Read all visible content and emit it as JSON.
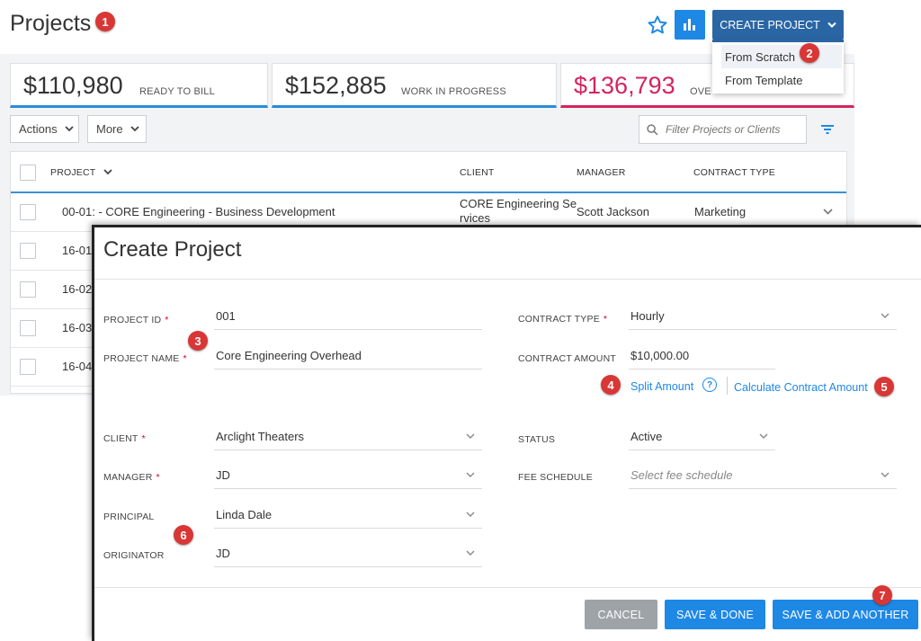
{
  "header": {
    "title": "Projects",
    "create_label": "CREATE PROJECT",
    "dropdown": [
      "From Scratch",
      "From Template"
    ]
  },
  "annotations": [
    "1",
    "2",
    "3",
    "4",
    "5",
    "6",
    "7"
  ],
  "stats": [
    {
      "amount": "$110,980",
      "label": "READY TO BILL"
    },
    {
      "amount": "$152,885",
      "label": "WORK IN PROGRESS"
    },
    {
      "amount": "$136,793",
      "label": "OVE"
    }
  ],
  "toolbar": {
    "actions_label": "Actions",
    "more_label": "More",
    "filter_placeholder": "Filter Projects or Clients"
  },
  "table": {
    "columns": [
      "PROJECT",
      "CLIENT",
      "MANAGER",
      "CONTRACT TYPE"
    ],
    "rows": [
      {
        "project": "00-01: - CORE Engineering - Business Development",
        "client_line1": "CORE Engineering Se",
        "client_line2": "rvices",
        "manager": "Scott Jackson",
        "contract_type": "Marketing"
      },
      {
        "project": "16-01"
      },
      {
        "project": "16-02"
      },
      {
        "project": "16-03"
      },
      {
        "project": "16-04"
      }
    ]
  },
  "modal": {
    "title": "Create Project",
    "project_id_label": "PROJECT ID",
    "project_id_value": "001",
    "project_name_label": "PROJECT NAME",
    "project_name_value": "Core Engineering Overhead",
    "contract_type_label": "CONTRACT TYPE",
    "contract_type_value": "Hourly",
    "contract_amount_label": "CONTRACT AMOUNT",
    "contract_amount_value": "$10,000.00",
    "split_amount_link": "Split Amount",
    "help_glyph": "?",
    "calculate_link": "Calculate Contract Amount",
    "client_label": "CLIENT",
    "client_value": "Arclight Theaters",
    "status_label": "STATUS",
    "status_value": "Active",
    "manager_label": "MANAGER",
    "manager_value": "JD",
    "fee_schedule_label": "FEE SCHEDULE",
    "fee_schedule_placeholder": "Select fee schedule",
    "principal_label": "PRINCIPAL",
    "principal_value": "Linda Dale",
    "originator_label": "ORIGINATOR",
    "originator_value": "JD",
    "required_mark": "*",
    "cancel_label": "CANCEL",
    "save_done_label": "SAVE & DONE",
    "save_add_label": "SAVE & ADD ANOTHER"
  },
  "colors": {
    "accent": "#1e88e5",
    "create_button": "#2a66a4",
    "over_red": "#d4245e",
    "annotation": "#d93636",
    "cancel": "#9ea3a8"
  },
  "icons": [
    "star-icon",
    "bar-chart-icon",
    "chevron-down-icon",
    "search-icon",
    "filter-icon",
    "help-icon"
  ]
}
